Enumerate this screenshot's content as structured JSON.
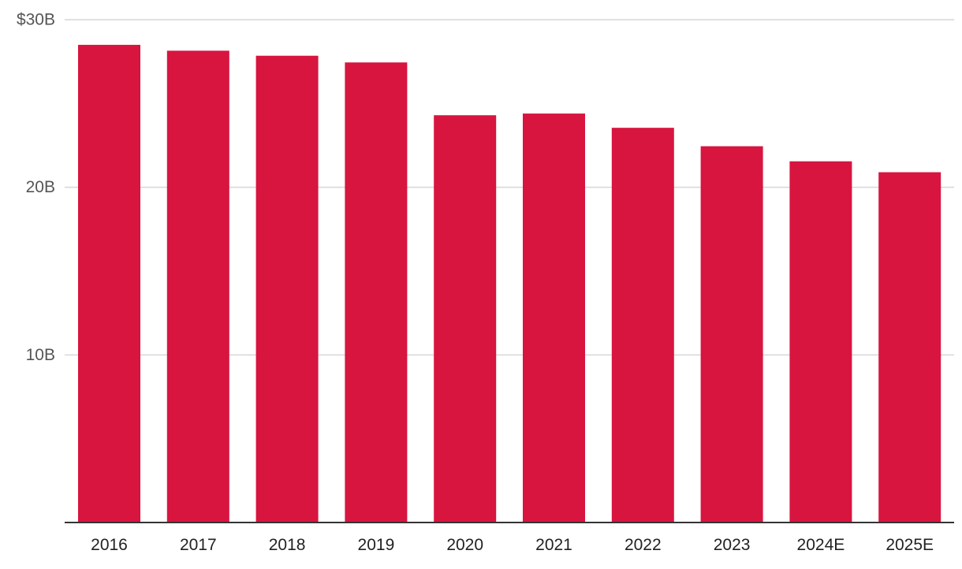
{
  "chart_data": {
    "type": "bar",
    "title": "",
    "xlabel": "",
    "ylabel": "",
    "categories": [
      "2016",
      "2017",
      "2018",
      "2019",
      "2020",
      "2021",
      "2022",
      "2023",
      "2024E",
      "2025E"
    ],
    "values": [
      28.5,
      28.15,
      27.85,
      27.45,
      24.3,
      24.4,
      23.55,
      22.45,
      21.55,
      20.9
    ],
    "ylim": [
      0,
      30
    ],
    "yticks": [
      {
        "value": 10,
        "label": "10B"
      },
      {
        "value": 20,
        "label": "20B"
      },
      {
        "value": 30,
        "label": "$30B"
      }
    ],
    "grid": true,
    "legend": "none",
    "bar_color": "#D7153F",
    "grid_color": "#D6D6D6",
    "axis_color": "#333333"
  }
}
